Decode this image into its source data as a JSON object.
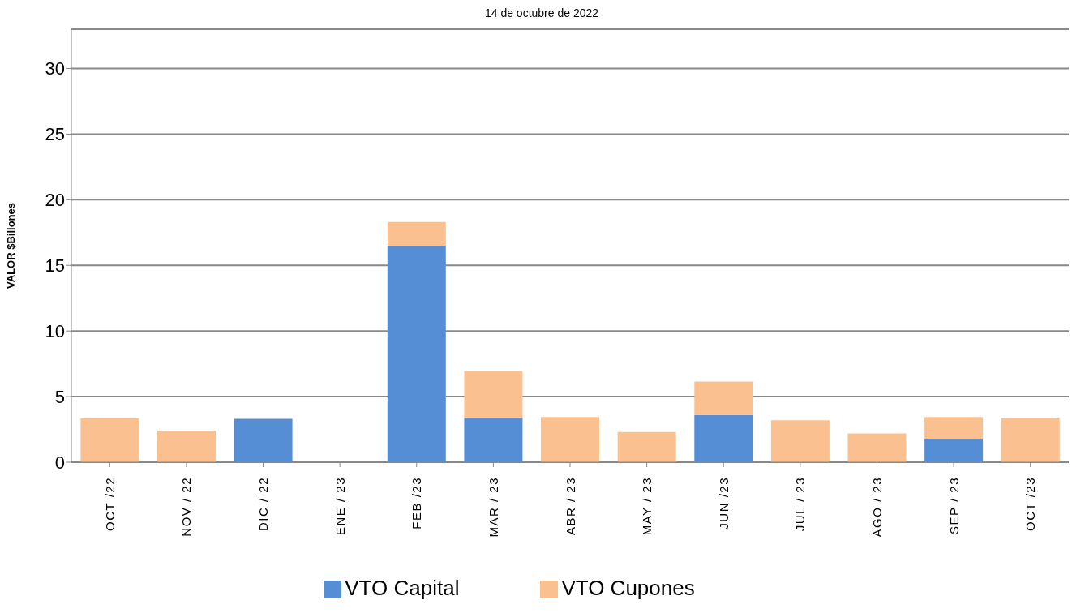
{
  "chart_data": {
    "type": "bar",
    "title": "14 de octubre de 2022",
    "ylabel": "VALOR $Billones",
    "categories": [
      "OCT /22",
      "NOV / 22",
      "DIC / 22",
      "ENE / 23",
      "FEB /23",
      "MAR / 23",
      "ABR / 23",
      "MAY / 23",
      "JUN /23",
      "JUL / 23",
      "AGO / 23",
      "SEP / 23",
      "OCT /23"
    ],
    "series": [
      {
        "name": "VTO Capital",
        "color": "#558ed5",
        "values": [
          0,
          0,
          3.3,
          0,
          16.5,
          3.4,
          0,
          0,
          3.6,
          0,
          0,
          1.75,
          0
        ]
      },
      {
        "name": "VTO Cupones",
        "color": "#fac090",
        "values": [
          3.35,
          2.4,
          0,
          0,
          1.8,
          3.55,
          3.45,
          2.3,
          2.55,
          3.2,
          2.2,
          1.7,
          3.4
        ]
      }
    ],
    "stacked": true,
    "ylim": [
      0,
      33
    ],
    "yticks": [
      0,
      5,
      10,
      15,
      20,
      25,
      30
    ],
    "grid": "y",
    "legend": "bottom"
  }
}
